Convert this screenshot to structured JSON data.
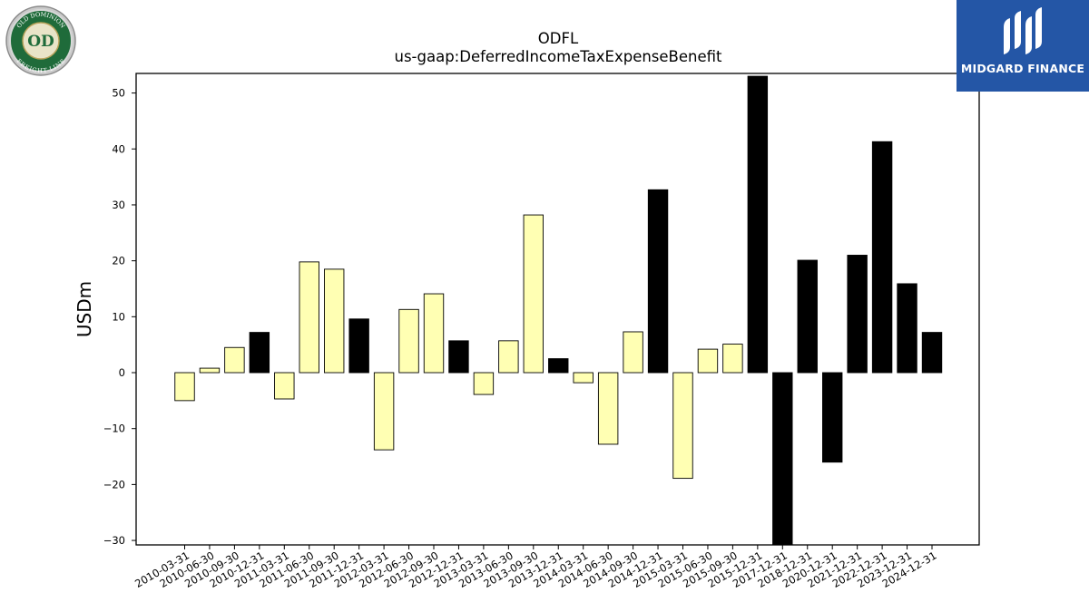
{
  "company_logo": {
    "ring_text_top": "OLD DOMINION",
    "ring_text_bottom": "FREIGHT LINE",
    "monogram": "OD",
    "ring_color": "#1f6b3a"
  },
  "brand": {
    "name": "MIDGARD FINANCE",
    "bg_color": "#2456a6"
  },
  "chart_data": {
    "type": "bar",
    "title": "ODFL",
    "subtitle": "us-gaap:DeferredIncomeTaxExpenseBenefit",
    "xlabel": "",
    "ylabel": "USDm",
    "ylim": [
      -30.8,
      53.5
    ],
    "yticks": [
      -30,
      -20,
      -10,
      0,
      10,
      20,
      30,
      40,
      50
    ],
    "grid": false,
    "colors": {
      "quarterly": "#ffffb3",
      "annual": "#000000"
    },
    "categories": [
      "2010-03-31",
      "2010-06-30",
      "2010-09-30",
      "2010-12-31",
      "2011-03-31",
      "2011-06-30",
      "2011-09-30",
      "2011-12-31",
      "2012-03-31",
      "2012-06-30",
      "2012-09-30",
      "2012-12-31",
      "2013-03-31",
      "2013-06-30",
      "2013-09-30",
      "2013-12-31",
      "2014-03-31",
      "2014-06-30",
      "2014-09-30",
      "2014-12-31",
      "2015-03-31",
      "2015-06-30",
      "2015-09-30",
      "2015-12-31",
      "2017-12-31",
      "2018-12-31",
      "2020-12-31",
      "2021-12-31",
      "2022-12-31",
      "2023-12-31",
      "2024-12-31"
    ],
    "values": [
      -5.0,
      0.8,
      4.5,
      7.2,
      -4.7,
      19.8,
      18.5,
      9.6,
      -13.8,
      11.3,
      14.1,
      5.7,
      -3.9,
      5.7,
      28.2,
      2.5,
      -1.8,
      -12.8,
      7.3,
      32.7,
      -18.9,
      4.2,
      5.1,
      53.0,
      -31.0,
      20.1,
      -16.0,
      21.0,
      41.3,
      15.9,
      7.2
    ],
    "period_type": [
      "Q",
      "Q",
      "Q",
      "A",
      "Q",
      "Q",
      "Q",
      "A",
      "Q",
      "Q",
      "Q",
      "A",
      "Q",
      "Q",
      "Q",
      "A",
      "Q",
      "Q",
      "Q",
      "A",
      "Q",
      "Q",
      "Q",
      "A",
      "A",
      "A",
      "A",
      "A",
      "A",
      "A",
      "A"
    ]
  }
}
